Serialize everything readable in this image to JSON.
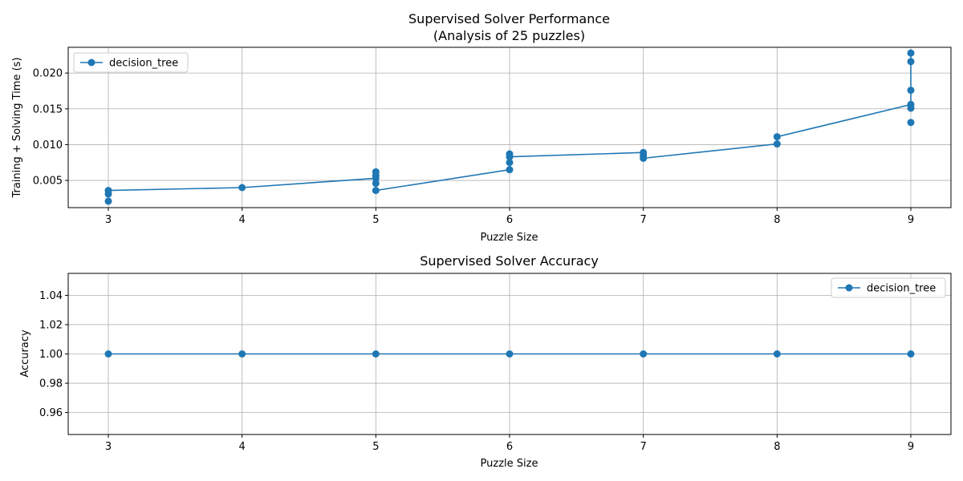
{
  "chart_data": [
    {
      "type": "line",
      "title": "Supervised Solver Performance\n(Analysis of 25 puzzles)",
      "title_lines": [
        "Supervised Solver Performance",
        "(Analysis of 25 puzzles)"
      ],
      "xlabel": "Puzzle Size",
      "ylabel": "Training + Solving Time (s)",
      "xlim": [
        2.7,
        9.3
      ],
      "ylim": [
        0.0012,
        0.0236
      ],
      "xticks": [
        3,
        4,
        5,
        6,
        7,
        8,
        9
      ],
      "yticks": [
        0.005,
        0.01,
        0.015,
        0.02
      ],
      "ytick_labels": [
        "0.005",
        "0.010",
        "0.015",
        "0.020"
      ],
      "grid": true,
      "legend_position": "upper-left",
      "color": "#1f77b4",
      "series": [
        {
          "name": "decision_tree",
          "x": [
            3,
            3,
            3,
            4,
            5,
            5,
            5,
            5,
            5,
            6,
            6,
            6,
            6,
            7,
            7,
            7,
            8,
            8,
            9,
            9,
            9,
            9,
            9,
            9,
            9
          ],
          "y": [
            0.0021,
            0.0031,
            0.0036,
            0.004,
            0.0036,
            0.0046,
            0.0053,
            0.0057,
            0.0062,
            0.0065,
            0.0075,
            0.0083,
            0.0087,
            0.0081,
            0.0085,
            0.0089,
            0.0101,
            0.0111,
            0.0131,
            0.0151,
            0.0156,
            0.0176,
            0.0216,
            0.0228,
            0.0156
          ],
          "line_path_x": [
            3,
            4,
            5,
            5,
            6,
            6,
            7,
            7,
            8,
            8,
            9,
            9,
            9
          ],
          "line_path_y": [
            0.0036,
            0.004,
            0.0053,
            0.0036,
            0.0065,
            0.0083,
            0.0089,
            0.0081,
            0.0101,
            0.0111,
            0.0156,
            0.0228,
            0.0156
          ]
        }
      ]
    },
    {
      "type": "line",
      "title": "Supervised Solver Accuracy",
      "title_lines": [
        "Supervised Solver Accuracy"
      ],
      "xlabel": "Puzzle Size",
      "ylabel": "Accuracy",
      "xlim": [
        2.7,
        9.3
      ],
      "ylim": [
        0.945,
        1.055
      ],
      "xticks": [
        3,
        4,
        5,
        6,
        7,
        8,
        9
      ],
      "yticks": [
        0.96,
        0.98,
        1.0,
        1.02,
        1.04
      ],
      "ytick_labels": [
        "0.96",
        "0.98",
        "1.00",
        "1.02",
        "1.04"
      ],
      "grid": true,
      "legend_position": "upper-right",
      "color": "#1f77b4",
      "series": [
        {
          "name": "decision_tree",
          "x": [
            3,
            4,
            5,
            6,
            7,
            8,
            9
          ],
          "y": [
            1.0,
            1.0,
            1.0,
            1.0,
            1.0,
            1.0,
            1.0
          ],
          "line_path_x": [
            3,
            4,
            5,
            6,
            7,
            8,
            9
          ],
          "line_path_y": [
            1.0,
            1.0,
            1.0,
            1.0,
            1.0,
            1.0,
            1.0
          ]
        }
      ]
    }
  ]
}
